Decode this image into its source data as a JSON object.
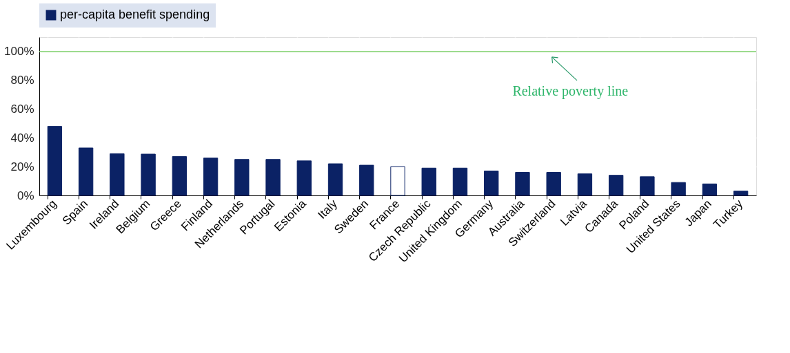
{
  "chart_data": {
    "type": "bar",
    "categories": [
      "Luxembourg",
      "Spain",
      "Ireland",
      "Belgium",
      "Greece",
      "Finland",
      "Netherlands",
      "Portugal",
      "Estonia",
      "Italy",
      "Sweden",
      "France",
      "Czech Republic",
      "United Kingdom",
      "Germany",
      "Australia",
      "Switzerland",
      "Latvia",
      "Canada",
      "Poland",
      "United States",
      "Japan",
      "Turkey"
    ],
    "series": [
      {
        "name": "per-capita benefit spending",
        "color": "#0b2265",
        "values": [
          48,
          33,
          29,
          28.7,
          27,
          26,
          25,
          25,
          24,
          22,
          21,
          20,
          19,
          19,
          17,
          16,
          16,
          15,
          14,
          13,
          9,
          8,
          3
        ],
        "colors": [
          "#0b2265",
          "#0b2265",
          "#0b2265",
          "#0b2265",
          "#0b2265",
          "#0b2265",
          "#0b2265",
          "#0b2265",
          "#0b2265",
          "#0b2265",
          "#0b2265",
          "#ffffff",
          "#0b2265",
          "#0b2265",
          "#0b2265",
          "#0b2265",
          "#0b2265",
          "#0b2265",
          "#0b2265",
          "#0b2265",
          "#0b2265",
          "#0b2265",
          "#0b2265"
        ]
      }
    ],
    "ylim": [
      0,
      110
    ],
    "yticks": [
      {
        "value": 0,
        "label": "0%"
      },
      {
        "value": 20,
        "label": "20%"
      },
      {
        "value": 40,
        "label": "40%"
      },
      {
        "value": 60,
        "label": "60%"
      },
      {
        "value": 80,
        "label": "80%"
      },
      {
        "value": 100,
        "label": "100%"
      }
    ],
    "ref_lines": [
      {
        "axis": "y",
        "value": 100,
        "color": "#7ccf6a"
      }
    ],
    "annotations": [
      "Relative poverty line"
    ],
    "grid": true,
    "legend": "top"
  }
}
